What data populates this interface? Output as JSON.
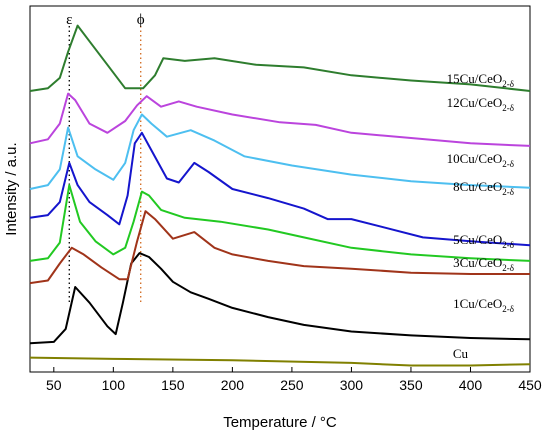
{
  "chart_data": {
    "type": "line",
    "xlabel": "Temperature / °C",
    "ylabel": "Intensity / a.u.",
    "xlim": [
      30,
      450
    ],
    "xticks": [
      50,
      100,
      150,
      200,
      250,
      300,
      350,
      400,
      450
    ],
    "y_tick_labels_shown": false,
    "grid": false,
    "legend": "none",
    "markers": [
      {
        "symbol": "ε",
        "x": 63,
        "line_color": "#000000",
        "line_style": "dotted"
      },
      {
        "symbol": "ϕ",
        "x": 123,
        "line_color": "#d2691e",
        "line_style": "dotted"
      }
    ],
    "series": [
      {
        "name": "Cu",
        "color": "#808000",
        "x": [
          30,
          100,
          200,
          300,
          350,
          400,
          450
        ],
        "y": [
          0.06,
          0.05,
          0.04,
          0.02,
          0.0,
          0.0,
          0.01
        ]
      },
      {
        "name": "1Cu/CeO2-δ",
        "color": "#000000",
        "x": [
          30,
          50,
          60,
          68,
          80,
          95,
          102,
          108,
          115,
          122,
          130,
          140,
          150,
          165,
          180,
          200,
          230,
          260,
          300,
          350,
          400,
          450
        ],
        "y": [
          0.17,
          0.18,
          0.28,
          0.6,
          0.48,
          0.3,
          0.24,
          0.48,
          0.78,
          0.86,
          0.83,
          0.74,
          0.64,
          0.56,
          0.51,
          0.44,
          0.37,
          0.31,
          0.26,
          0.23,
          0.21,
          0.2
        ]
      },
      {
        "name": "3Cu/CeO2-δ",
        "color": "#a0341a",
        "x": [
          30,
          45,
          55,
          65,
          75,
          90,
          105,
          112,
          120,
          127,
          135,
          150,
          168,
          185,
          200,
          230,
          260,
          300,
          350,
          400,
          450
        ],
        "y": [
          0.63,
          0.65,
          0.78,
          0.9,
          0.85,
          0.75,
          0.66,
          0.66,
          0.95,
          1.18,
          1.12,
          0.97,
          1.02,
          0.9,
          0.85,
          0.8,
          0.76,
          0.74,
          0.71,
          0.7,
          0.7
        ]
      },
      {
        "name": "5Cu/CeO2-δ",
        "color": "#22c922",
        "x": [
          30,
          45,
          55,
          63,
          72,
          85,
          100,
          110,
          117,
          124,
          130,
          140,
          160,
          190,
          230,
          260,
          300,
          350,
          400,
          450
        ],
        "y": [
          0.8,
          0.82,
          0.94,
          1.38,
          1.1,
          0.95,
          0.85,
          0.9,
          1.1,
          1.33,
          1.3,
          1.19,
          1.13,
          1.1,
          1.04,
          0.98,
          0.9,
          0.85,
          0.82,
          0.8
        ]
      },
      {
        "name": "8Cu/CeO2-δ",
        "color": "#1515cd",
        "x": [
          30,
          45,
          55,
          63,
          70,
          80,
          95,
          105,
          112,
          118,
          124,
          130,
          145,
          155,
          168,
          180,
          200,
          230,
          260,
          280,
          300,
          330,
          360,
          400,
          450
        ],
        "y": [
          1.13,
          1.15,
          1.25,
          1.55,
          1.38,
          1.25,
          1.15,
          1.08,
          1.3,
          1.7,
          1.78,
          1.68,
          1.43,
          1.4,
          1.55,
          1.48,
          1.35,
          1.28,
          1.2,
          1.12,
          1.12,
          1.05,
          0.98,
          0.95,
          0.92
        ]
      },
      {
        "name": "10Cu/CeO2-δ",
        "color": "#4dbff0",
        "x": [
          30,
          45,
          55,
          62,
          70,
          85,
          100,
          110,
          117,
          124,
          132,
          145,
          165,
          185,
          210,
          250,
          300,
          350,
          400,
          450
        ],
        "y": [
          1.35,
          1.38,
          1.5,
          1.82,
          1.6,
          1.5,
          1.42,
          1.55,
          1.8,
          1.92,
          1.85,
          1.75,
          1.8,
          1.72,
          1.6,
          1.53,
          1.46,
          1.41,
          1.38,
          1.36
        ]
      },
      {
        "name": "12Cu/CeO2-δ",
        "color": "#bb44dd",
        "x": [
          30,
          45,
          55,
          62,
          68,
          80,
          95,
          110,
          120,
          128,
          140,
          155,
          170,
          200,
          240,
          270,
          300,
          350,
          400,
          450
        ],
        "y": [
          1.7,
          1.73,
          1.85,
          2.08,
          2.03,
          1.85,
          1.78,
          1.87,
          1.99,
          2.06,
          1.98,
          2.02,
          1.98,
          1.92,
          1.86,
          1.84,
          1.78,
          1.74,
          1.7,
          1.68
        ]
      },
      {
        "name": "15Cu/CeO2-δ",
        "color": "#2e7d2e",
        "x": [
          30,
          45,
          55,
          62,
          70,
          80,
          95,
          110,
          125,
          135,
          142,
          160,
          185,
          220,
          260,
          300,
          350,
          400,
          450
        ],
        "y": [
          2.1,
          2.12,
          2.2,
          2.4,
          2.6,
          2.48,
          2.3,
          2.12,
          2.12,
          2.22,
          2.35,
          2.33,
          2.35,
          2.3,
          2.28,
          2.22,
          2.18,
          2.15,
          2.1
        ]
      }
    ],
    "curve_labels": [
      {
        "base": "15Cu/CeO",
        "sub": "2-δ"
      },
      {
        "base": "12Cu/CeO",
        "sub": "2-δ"
      },
      {
        "base": "10Cu/CeO",
        "sub": "2-δ"
      },
      {
        "base": "8Cu/CeO",
        "sub": "2-δ"
      },
      {
        "base": "5Cu/CeO",
        "sub": "2-δ"
      },
      {
        "base": "3Cu/CeO",
        "sub": "2-δ"
      },
      {
        "base": "1Cu/CeO",
        "sub": "2-δ"
      },
      {
        "base": "Cu",
        "sub": ""
      }
    ]
  }
}
